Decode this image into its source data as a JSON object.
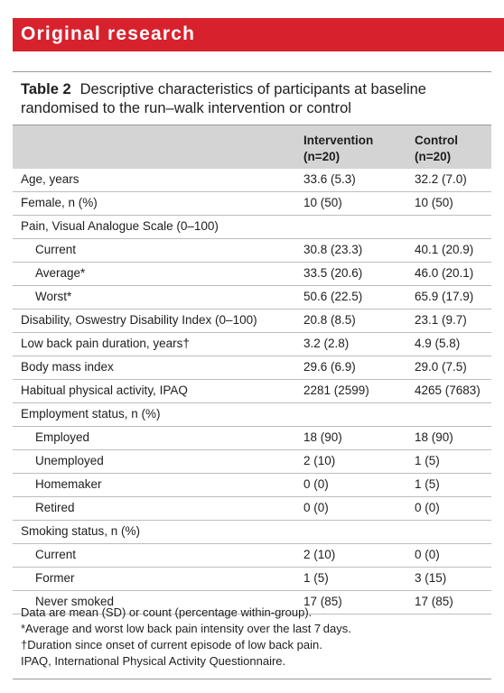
{
  "banner": {
    "title": "Original research",
    "color": "#d7222e"
  },
  "table": {
    "label": "Table 2",
    "caption": "Descriptive characteristics of participants at baseline randomised to the run–walk intervention or control",
    "header": {
      "col1": "",
      "intervention_line1": "Intervention",
      "intervention_line2": "(n=20)",
      "control_line1": "Control",
      "control_line2": "(n=20)"
    },
    "rows": [
      {
        "label": "Age, years",
        "intervention": "33.6 (5.3)",
        "control": "32.2 (7.0)",
        "indent": false
      },
      {
        "label": "Female, n (%)",
        "intervention": "10 (50)",
        "control": "10 (50)",
        "indent": false
      },
      {
        "label": "Pain, Visual Analogue Scale (0–100)",
        "intervention": "",
        "control": "",
        "indent": false
      },
      {
        "label": "Current",
        "intervention": "30.8 (23.3)",
        "control": "40.1 (20.9)",
        "indent": true
      },
      {
        "label": "Average*",
        "intervention": "33.5 (20.6)",
        "control": "46.0 (20.1)",
        "indent": true
      },
      {
        "label": "Worst*",
        "intervention": "50.6 (22.5)",
        "control": "65.9 (17.9)",
        "indent": true
      },
      {
        "label": "Disability, Oswestry Disability Index (0–100)",
        "intervention": "20.8 (8.5)",
        "control": "23.1 (9.7)",
        "indent": false
      },
      {
        "label": "Low back pain duration, years†",
        "intervention": "3.2 (2.8)",
        "control": "4.9 (5.8)",
        "indent": false
      },
      {
        "label": "Body mass index",
        "intervention": "29.6 (6.9)",
        "control": "29.0 (7.5)",
        "indent": false
      },
      {
        "label": "Habitual physical activity, IPAQ",
        "intervention": "2281 (2599)",
        "control": "4265 (7683)",
        "indent": false
      },
      {
        "label": "Employment status, n (%)",
        "intervention": "",
        "control": "",
        "indent": false
      },
      {
        "label": "Employed",
        "intervention": "18 (90)",
        "control": "18 (90)",
        "indent": true
      },
      {
        "label": "Unemployed",
        "intervention": "2 (10)",
        "control": "1 (5)",
        "indent": true
      },
      {
        "label": "Homemaker",
        "intervention": "0 (0)",
        "control": "1 (5)",
        "indent": true
      },
      {
        "label": "Retired",
        "intervention": "0 (0)",
        "control": "0 (0)",
        "indent": true
      },
      {
        "label": "Smoking status, n (%)",
        "intervention": "",
        "control": "",
        "indent": false
      },
      {
        "label": "Current",
        "intervention": "2 (10)",
        "control": "0 (0)",
        "indent": true
      },
      {
        "label": "Former",
        "intervention": "1 (5)",
        "control": "3 (15)",
        "indent": true
      },
      {
        "label": "Never smoked",
        "intervention": "17 (85)",
        "control": "17 (85)",
        "indent": true
      }
    ],
    "footnotes": [
      "Data are mean (SD) or count (percentage within-group).",
      "*Average and worst low back pain intensity over the last 7 days.",
      "†Duration since onset of current episode of low back pain.",
      "IPAQ, International Physical Activity Questionnaire."
    ]
  }
}
